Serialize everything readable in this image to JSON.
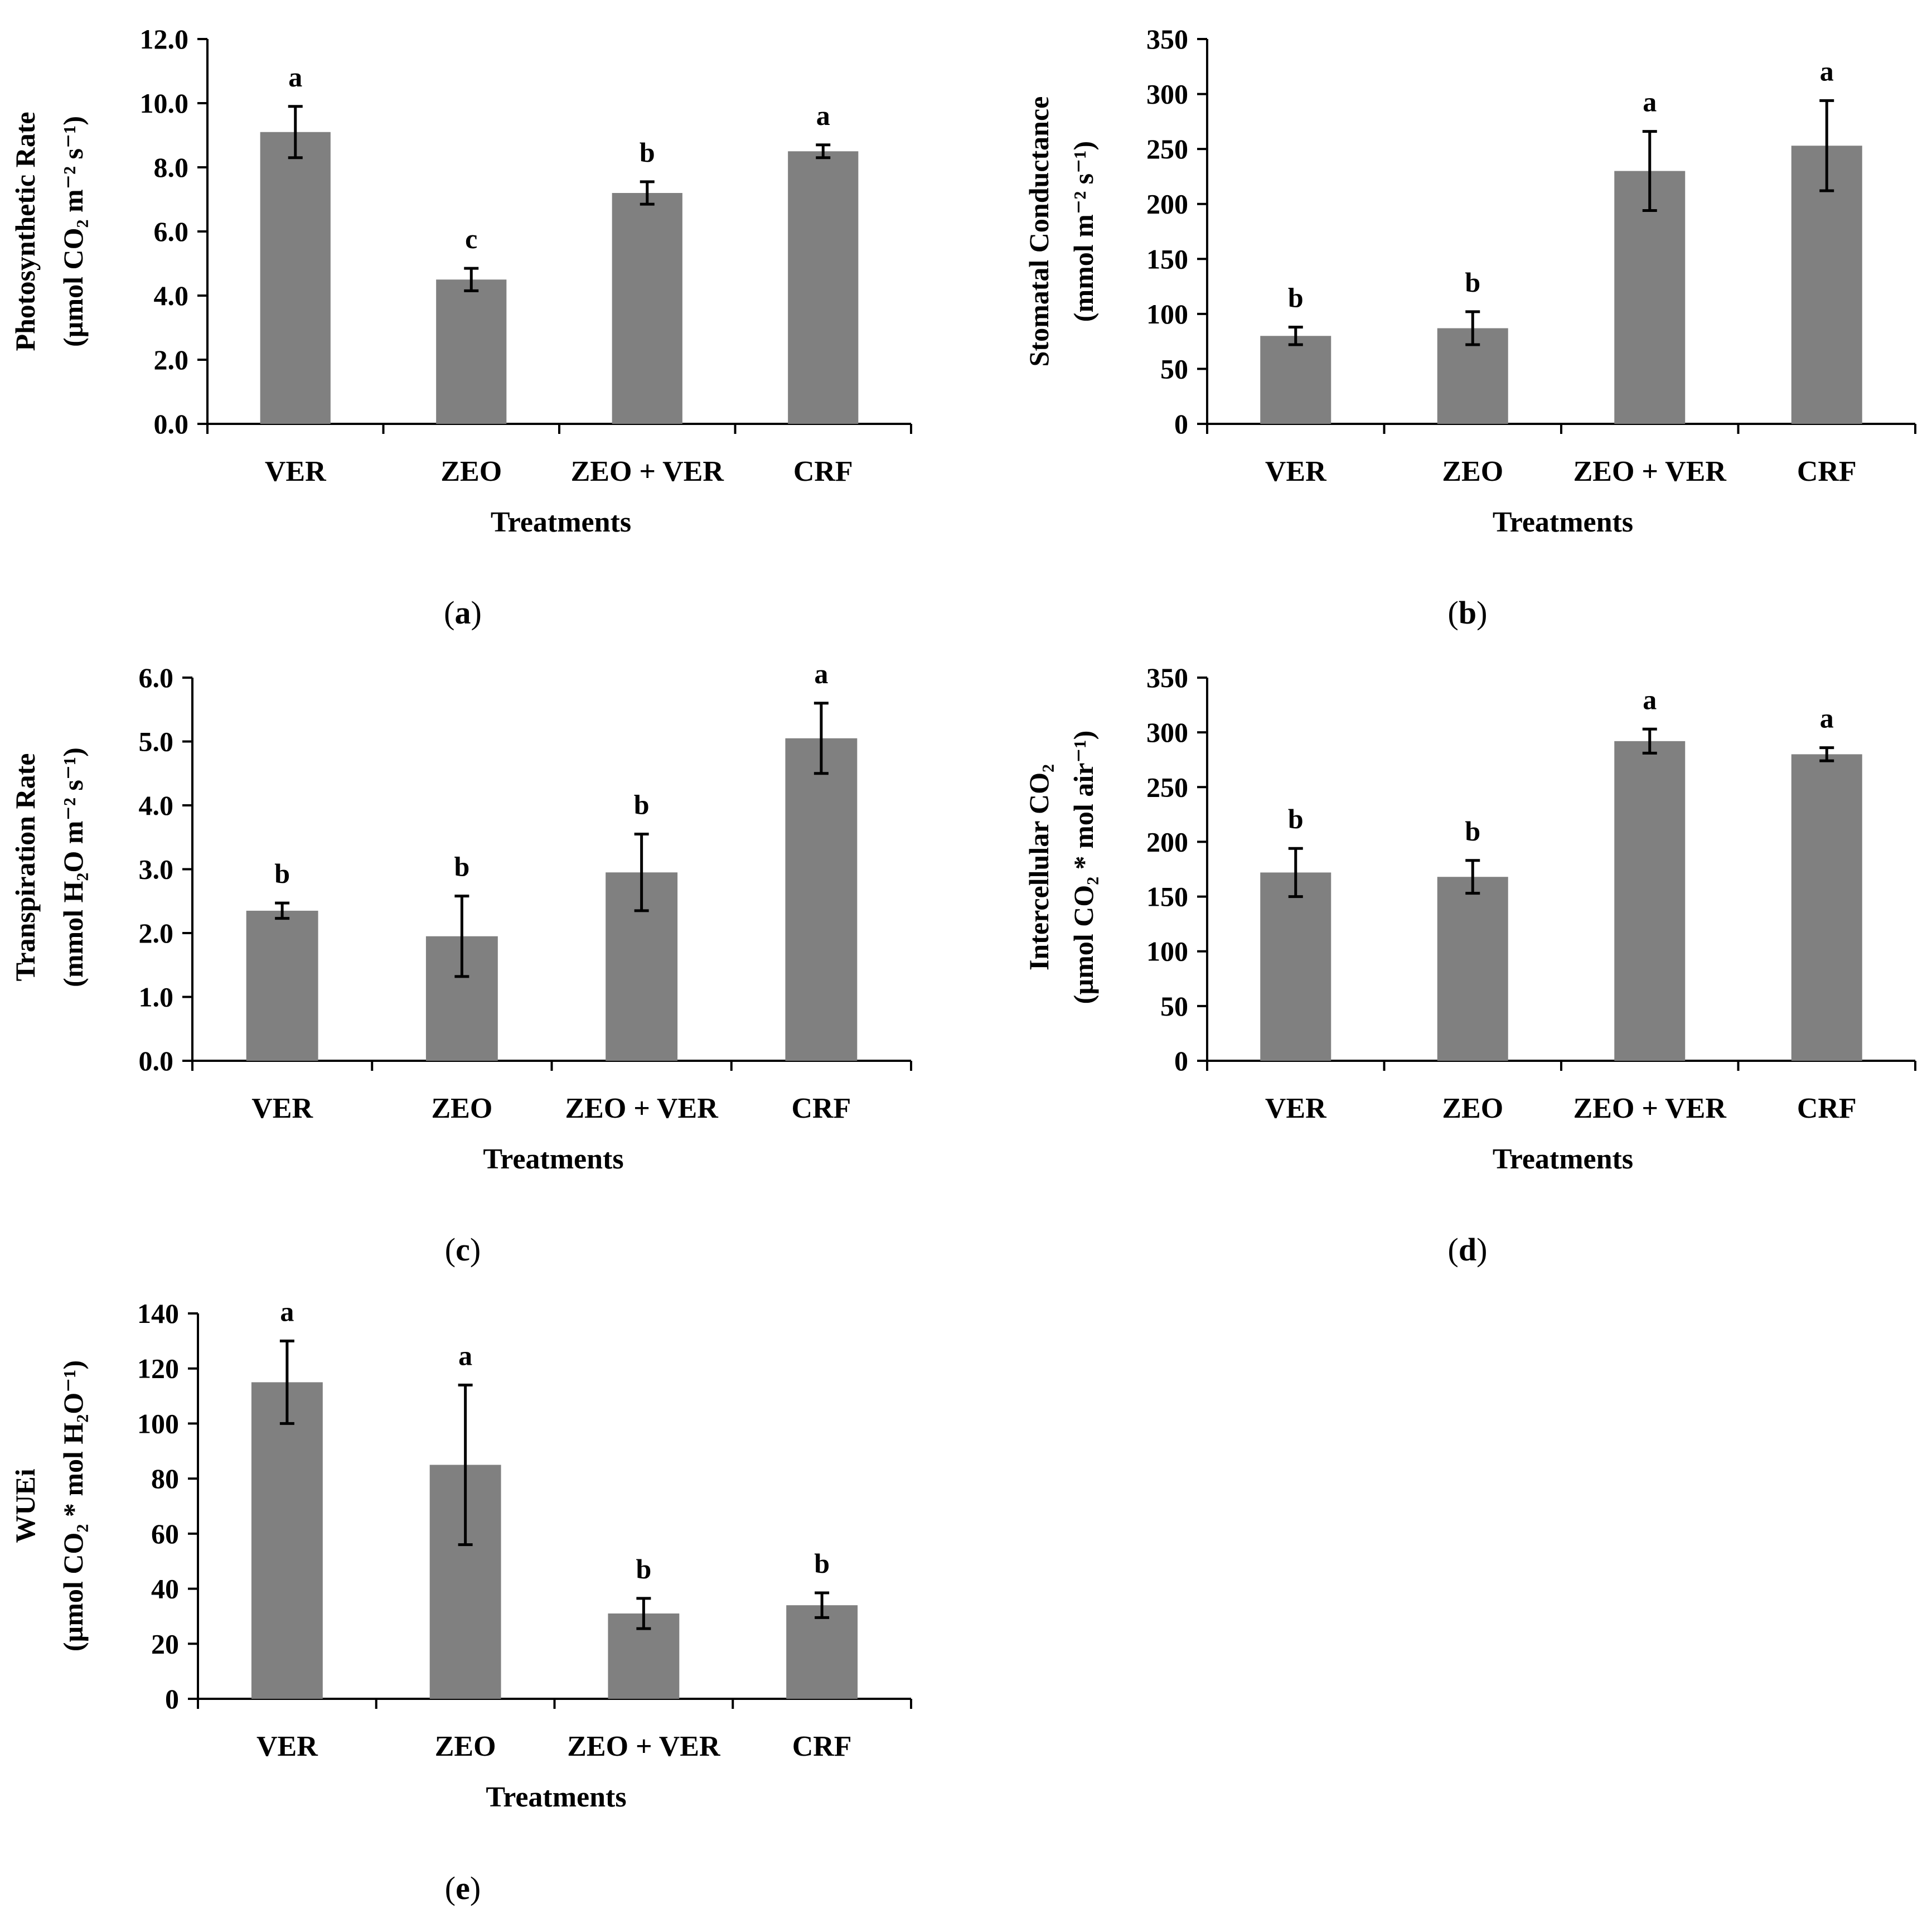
{
  "colors": {
    "bar": "#808080",
    "axis": "#000000",
    "error": "#000000",
    "text": "#000000"
  },
  "chart_data": [
    {
      "type": "bar",
      "panel_label": "a",
      "xlabel": "Treatments",
      "ylabel_line1": "Photosynthetic Rate",
      "ylabel_line2": "(µmol CO₂ m⁻² s⁻¹)",
      "categories": [
        "VER",
        "ZEO",
        "ZEO + VER",
        "CRF"
      ],
      "values": [
        9.1,
        4.5,
        7.2,
        8.5
      ],
      "errors": [
        0.8,
        0.35,
        0.35,
        0.2
      ],
      "significance": [
        "a",
        "c",
        "b",
        "a"
      ],
      "ylim": [
        0,
        12
      ],
      "yticks": [
        0,
        2,
        4,
        6,
        8,
        10,
        12
      ],
      "ytick_labels": [
        "0.0",
        "2.0",
        "4.0",
        "6.0",
        "8.0",
        "10.0",
        "12.0"
      ]
    },
    {
      "type": "bar",
      "panel_label": "b",
      "xlabel": "Treatments",
      "ylabel_line1": "Stomatal Conductance",
      "ylabel_line2": "(mmol m⁻² s⁻¹)",
      "categories": [
        "VER",
        "ZEO",
        "ZEO + VER",
        "CRF"
      ],
      "values": [
        80,
        87,
        230,
        253
      ],
      "errors": [
        8,
        15,
        36,
        41
      ],
      "significance": [
        "b",
        "b",
        "a",
        "a"
      ],
      "ylim": [
        0,
        350
      ],
      "yticks": [
        0,
        50,
        100,
        150,
        200,
        250,
        300,
        350
      ],
      "ytick_labels": [
        "0",
        "50",
        "100",
        "150",
        "200",
        "250",
        "300",
        "350"
      ]
    },
    {
      "type": "bar",
      "panel_label": "c",
      "xlabel": "Treatments",
      "ylabel_line1": "Transpiration Rate",
      "ylabel_line2": "(mmol H₂O m⁻² s⁻¹)",
      "categories": [
        "VER",
        "ZEO",
        "ZEO + VER",
        "CRF"
      ],
      "values": [
        2.35,
        1.95,
        2.95,
        5.05
      ],
      "errors": [
        0.12,
        0.63,
        0.6,
        0.55
      ],
      "significance": [
        "b",
        "b",
        "b",
        "a"
      ],
      "ylim": [
        0,
        6
      ],
      "yticks": [
        0,
        1,
        2,
        3,
        4,
        5,
        6
      ],
      "ytick_labels": [
        "0.0",
        "1.0",
        "2.0",
        "3.0",
        "4.0",
        "5.0",
        "6.0"
      ]
    },
    {
      "type": "bar",
      "panel_label": "d",
      "xlabel": "Treatments",
      "ylabel_line1": "Intercellular CO₂",
      "ylabel_line2": "(µmol CO₂ * mol air⁻¹)",
      "categories": [
        "VER",
        "ZEO",
        "ZEO + VER",
        "CRF"
      ],
      "values": [
        172,
        168,
        292,
        280
      ],
      "errors": [
        22,
        15,
        11,
        6
      ],
      "significance": [
        "b",
        "b",
        "a",
        "a"
      ],
      "ylim": [
        0,
        350
      ],
      "yticks": [
        0,
        50,
        100,
        150,
        200,
        250,
        300,
        350
      ],
      "ytick_labels": [
        "0",
        "50",
        "100",
        "150",
        "200",
        "250",
        "300",
        "350"
      ]
    },
    {
      "type": "bar",
      "panel_label": "e",
      "xlabel": "Treatments",
      "ylabel_line1": "WUEi",
      "ylabel_line2": "(µmol CO₂ * mol H₂O⁻¹)",
      "categories": [
        "VER",
        "ZEO",
        "ZEO + VER",
        "CRF"
      ],
      "values": [
        115,
        85,
        31,
        34
      ],
      "errors": [
        15,
        29,
        5.5,
        4.5
      ],
      "significance": [
        "a",
        "a",
        "b",
        "b"
      ],
      "ylim": [
        0,
        140
      ],
      "yticks": [
        0,
        20,
        40,
        60,
        80,
        100,
        120,
        140
      ],
      "ytick_labels": [
        "0",
        "20",
        "40",
        "60",
        "80",
        "100",
        "120",
        "140"
      ]
    }
  ]
}
